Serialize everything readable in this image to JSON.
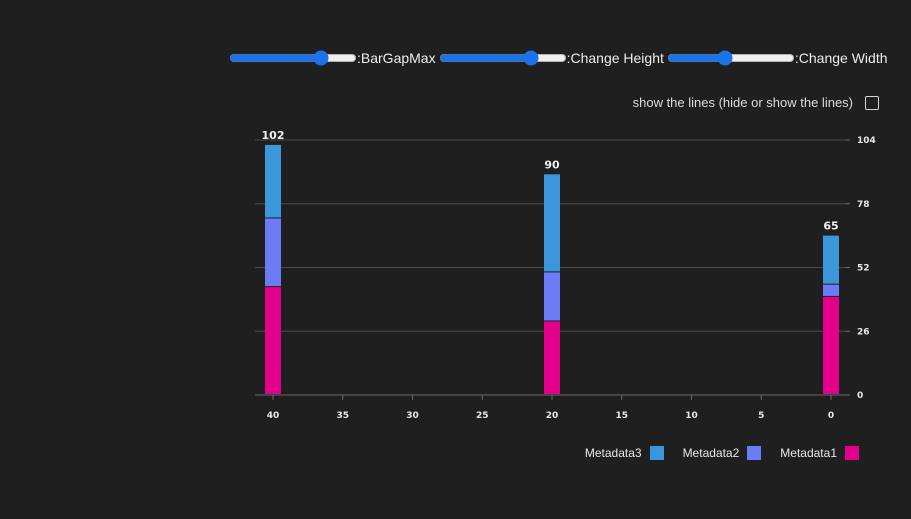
{
  "controls": {
    "bargap_label": ":BarGapMax",
    "height_label": ":Change Height",
    "width_label": ":Change Width"
  },
  "lines_toggle": {
    "label": "show the lines (hide or show the lines)",
    "checked": false
  },
  "chart_data": {
    "type": "bar",
    "stacked": true,
    "orientation": "vertical",
    "x": [
      40,
      20,
      0
    ],
    "x_ticks": [
      "40",
      "35",
      "30",
      "25",
      "20",
      "15",
      "10",
      "5",
      "0"
    ],
    "xlim": [
      40,
      0
    ],
    "y_ticks": [
      "0",
      "26",
      "52",
      "78",
      "104"
    ],
    "ylim": [
      0,
      104
    ],
    "y_axis_side": "right",
    "grid": true,
    "series": [
      {
        "name": "Metadata1",
        "color": "#e3008c",
        "values": [
          44,
          30,
          40
        ]
      },
      {
        "name": "Metadata2",
        "color": "#6b7cf5",
        "values": [
          28,
          20,
          5
        ]
      },
      {
        "name": "Metadata3",
        "color": "#3b96dc",
        "values": [
          30,
          40,
          20
        ]
      }
    ],
    "totals": [
      "102",
      "90",
      "65"
    ],
    "legend_position": "bottom-right",
    "legend_order": [
      "Metadata3",
      "Metadata2",
      "Metadata1"
    ]
  }
}
